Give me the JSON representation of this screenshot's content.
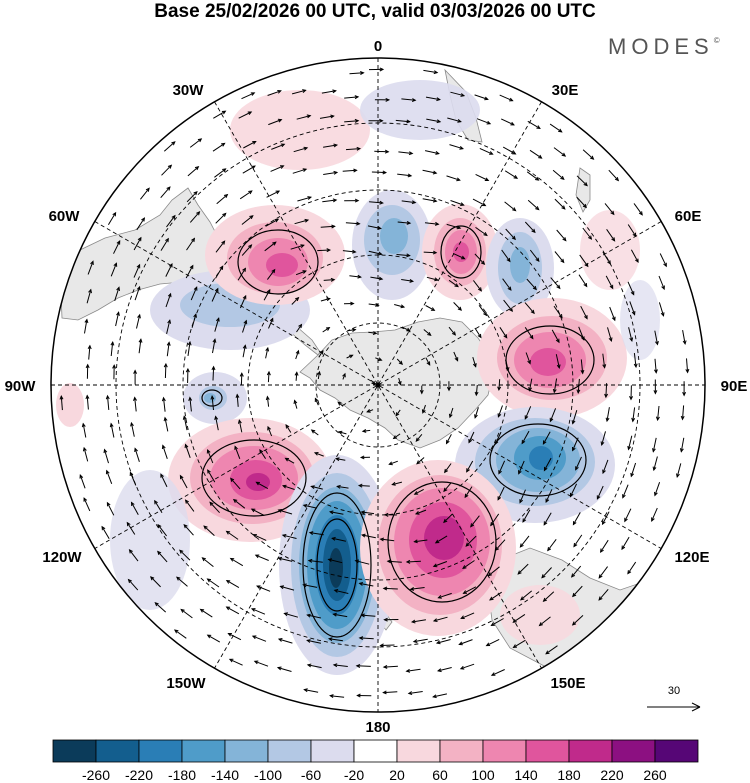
{
  "title": "Base 25/02/2026 00 UTC, valid 03/03/2026 00 UTC",
  "brand": {
    "name": "MODES",
    "mark": "©"
  },
  "longitude_labels": {
    "top": "0",
    "n30e": "30E",
    "n60e": "60E",
    "e90": "90E",
    "n120e": "120E",
    "n150e": "150E",
    "bottom": "180",
    "n150w": "150W",
    "n120w": "120W",
    "w90": "90W",
    "n60w": "60W",
    "n30w": "30W"
  },
  "reference_vector": {
    "label": "30"
  },
  "colorbar": {
    "labels": [
      "-260",
      "-220",
      "-180",
      "-140",
      "-100",
      "-60",
      "-20",
      "20",
      "60",
      "100",
      "140",
      "180",
      "220",
      "260"
    ],
    "colors": [
      "#0b3b5a",
      "#135e8e",
      "#2a7eb6",
      "#4f9cc9",
      "#84b4d8",
      "#b3c8e4",
      "#dcdcee",
      "#ffffff",
      "#f8d8de",
      "#f3b2c4",
      "#ee86b0",
      "#e0559d",
      "#c02a8b",
      "#8c1081",
      "#560676"
    ]
  },
  "land_color": "#e8e8e8",
  "icons": {
    "reference-arrow-icon": "arrow",
    "north-pole-icon": "dot"
  }
}
